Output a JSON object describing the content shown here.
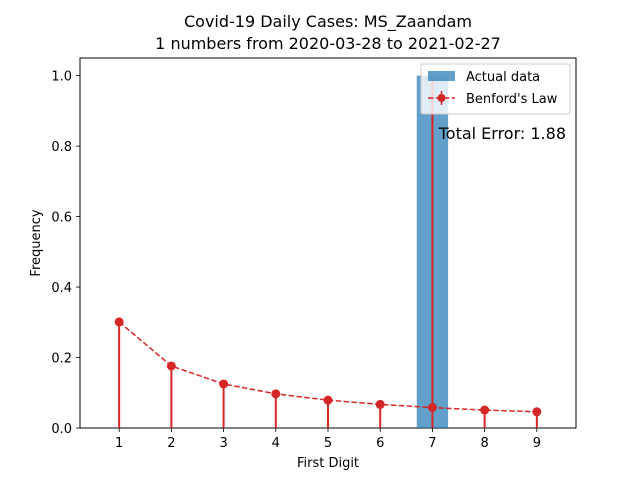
{
  "chart_data": {
    "type": "bar",
    "title": "Covid-19 Daily Cases: MS_Zaandam",
    "subtitle": "1 numbers from 2020-03-28 to 2021-02-27",
    "xlabel": "First Digit",
    "ylabel": "Frequency",
    "categories": [
      "1",
      "2",
      "3",
      "4",
      "5",
      "6",
      "7",
      "8",
      "9"
    ],
    "x": [
      1,
      2,
      3,
      4,
      5,
      6,
      7,
      8,
      9
    ],
    "ylim": [
      0,
      1.05
    ],
    "yticks": [
      0.0,
      0.2,
      0.4,
      0.6,
      0.8,
      1.0
    ],
    "ytick_labels": [
      "0.0",
      "0.2",
      "0.4",
      "0.6",
      "0.8",
      "1.0"
    ],
    "grid": false,
    "legend_position": "top-right",
    "series": [
      {
        "name": "Actual data",
        "kind": "bar",
        "color": "#1f77b4",
        "values": [
          0,
          0,
          0,
          0,
          0,
          0,
          1.0,
          0,
          0
        ]
      },
      {
        "name": "Benford's Law",
        "kind": "line-with-stems",
        "color": "#d62728",
        "values": [
          0.301,
          0.176,
          0.125,
          0.097,
          0.079,
          0.067,
          0.058,
          0.051,
          0.046
        ]
      }
    ],
    "annotations": [
      {
        "text": "Total Error: 1.88",
        "color": "#d62728"
      }
    ]
  }
}
